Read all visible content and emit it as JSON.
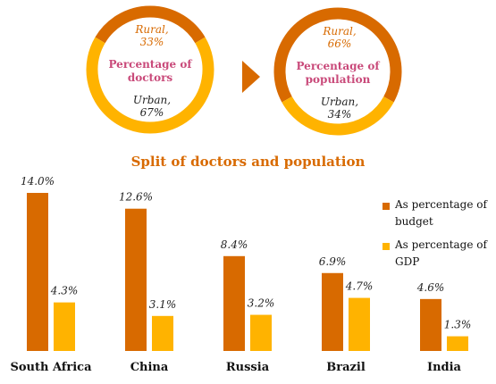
{
  "donuts": [
    {
      "center_label": [
        "Percentage of",
        "doctors"
      ],
      "segments": [
        {
          "label": "Rural,",
          "value_label": "33%",
          "value": 33,
          "color": "#d86a00"
        },
        {
          "label": "Urban,",
          "value_label": "67%",
          "value": 67,
          "color": "#ffb300"
        }
      ]
    },
    {
      "center_label": [
        "Percentage of",
        "population"
      ],
      "segments": [
        {
          "label": "Rural,",
          "value_label": "66%",
          "value": 66,
          "color": "#d86a00"
        },
        {
          "label": "Urban,",
          "value_label": "34%",
          "value": 34,
          "color": "#ffb300"
        }
      ]
    }
  ],
  "arrow_color": "#d86a00",
  "subtitle": "Split of doctors and population",
  "chart_data": {
    "type": "bar",
    "categories": [
      "South Africa",
      "China",
      "Russia",
      "Brazil",
      "India"
    ],
    "series": [
      {
        "name": "As percentage of budget",
        "values": [
          14.0,
          12.6,
          8.4,
          6.9,
          4.6
        ],
        "labels": [
          "14.0%",
          "12.6%",
          "8.4%",
          "6.9%",
          "4.6%"
        ],
        "color": "#d86a00"
      },
      {
        "name": "As percentage of GDP",
        "values": [
          4.3,
          3.1,
          3.2,
          4.7,
          1.3
        ],
        "labels": [
          "4.3%",
          "3.1%",
          "3.2%",
          "4.7%",
          "1.3%"
        ],
        "color": "#ffb300"
      }
    ],
    "ylim": [
      0,
      14.0
    ],
    "legend_position": "right",
    "grid": false
  },
  "legend": [
    {
      "lines": [
        "As percentage of",
        "budget"
      ],
      "color": "#d86a00"
    },
    {
      "lines": [
        "As percentage of",
        "GDP"
      ],
      "color": "#ffb300"
    }
  ]
}
